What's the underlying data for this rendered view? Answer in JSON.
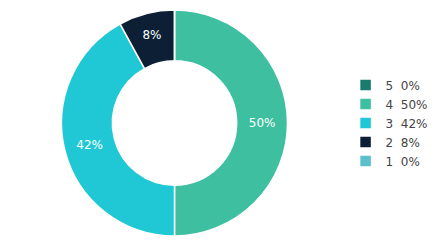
{
  "chart_data": {
    "type": "donut",
    "categories": [
      "5  0%",
      "4  50%",
      "3  42%",
      "2  8%",
      "1  0%"
    ],
    "values": [
      0.0001,
      50,
      42,
      8,
      0.0001
    ],
    "value_labels": [
      null,
      "50%",
      "42%",
      "8%",
      null
    ],
    "colors": [
      "#1a7a6e",
      "#3dbfa0",
      "#1fc8d4",
      "#0d1f35",
      "#5bbfcc"
    ],
    "data_labels": true,
    "legend": "right"
  }
}
